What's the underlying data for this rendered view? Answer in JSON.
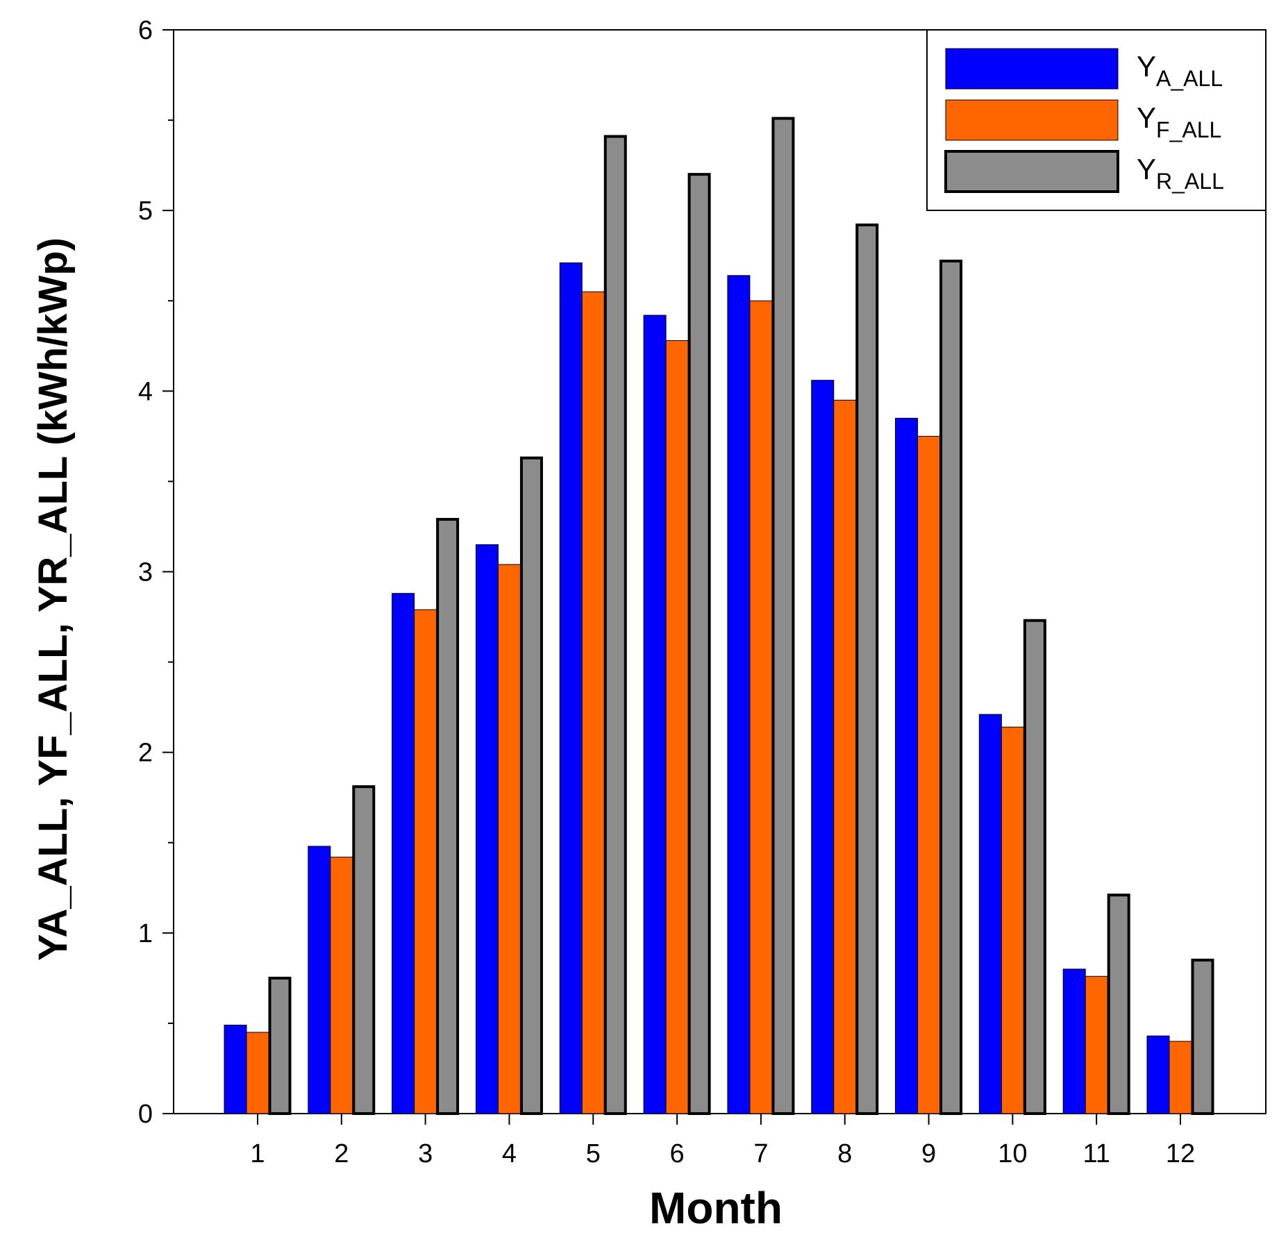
{
  "chart_data": {
    "type": "bar",
    "title": "",
    "xlabel": "Month",
    "ylabel": {
      "parts": [
        {
          "main": "Y",
          "sub": "A_ALL"
        },
        {
          "main": "Y",
          "sub": "F_ALL"
        },
        {
          "main": "Y",
          "sub": "R_ALL"
        }
      ],
      "separator": ", ",
      "unit": " (kWh/kWp)"
    },
    "categories": [
      "1",
      "2",
      "3",
      "4",
      "5",
      "6",
      "7",
      "8",
      "9",
      "10",
      "11",
      "12"
    ],
    "ylim": [
      0,
      6
    ],
    "yticks": [
      0,
      1,
      2,
      3,
      4,
      5,
      6
    ],
    "ytick_labels": [
      "0",
      "1",
      "2",
      "3",
      "4",
      "5",
      "6"
    ],
    "grid": false,
    "legend_position": "top-right",
    "series": [
      {
        "name": "YA_ALL",
        "label_main": "Y",
        "label_sub": "A_ALL",
        "color": "#0000ff",
        "values": [
          0.49,
          1.48,
          2.88,
          3.15,
          4.71,
          4.42,
          4.64,
          4.06,
          3.85,
          2.21,
          0.8,
          0.43
        ]
      },
      {
        "name": "YF_ALL",
        "label_main": "Y",
        "label_sub": "F_ALL",
        "color": "#ff6600",
        "values": [
          0.45,
          1.42,
          2.79,
          3.04,
          4.55,
          4.28,
          4.5,
          3.95,
          3.75,
          2.14,
          0.76,
          0.4
        ]
      },
      {
        "name": "YR_ALL",
        "label_main": "Y",
        "label_sub": "R_ALL",
        "color": "#8c8c8c",
        "values": [
          0.75,
          1.81,
          3.29,
          3.63,
          5.41,
          5.2,
          5.51,
          4.92,
          4.72,
          2.73,
          1.21,
          0.85
        ]
      }
    ]
  }
}
